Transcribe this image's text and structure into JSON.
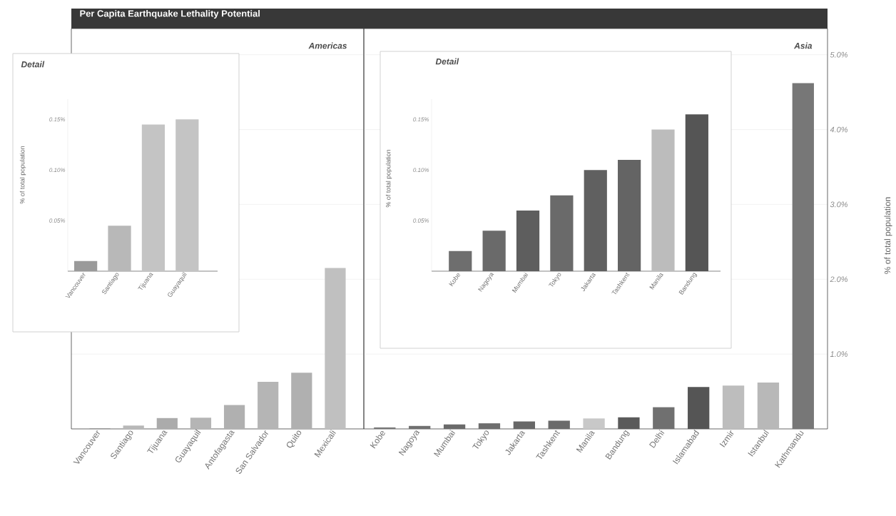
{
  "chart_data": [
    {
      "type": "bar",
      "title": "Per Capita Earthquake Lethality Potential",
      "subtitle": "Americas",
      "categories": [
        "Vancouver",
        "Santiago",
        "Tijuana",
        "Guayaquil",
        "Antofagasta",
        "San Salvador",
        "Quito",
        "Mexicali"
      ],
      "values": [
        0.01,
        0.045,
        0.145,
        0.15,
        0.32,
        0.63,
        0.75,
        2.15
      ],
      "colors": [
        "#9a9a9a",
        "#b8b8b8",
        "#ababab",
        "#b5b5b5",
        "#b0b0b0",
        "#b5b5b5",
        "#b0b0b0",
        "#c0c0c0"
      ],
      "ylim": [
        0,
        5.35
      ],
      "yticks": [
        1,
        2,
        3,
        4,
        5
      ],
      "grid": "y",
      "tick_labels": "x"
    },
    {
      "type": "bar",
      "subtitle": "Asia",
      "ylabel": "% of total population",
      "categories": [
        "Kobe",
        "Nagoya",
        "Mumbai",
        "Tokyo",
        "Jakarta",
        "Tashkent",
        "Manila",
        "Bandung",
        "Delhi",
        "Islamabad",
        "Izmir",
        "Istanbul",
        "Kathmandu"
      ],
      "values": [
        0.02,
        0.04,
        0.06,
        0.075,
        0.1,
        0.11,
        0.14,
        0.155,
        0.29,
        0.56,
        0.58,
        0.62,
        4.62
      ],
      "colors": [
        "#777777",
        "#707070",
        "#6a6a6a",
        "#6e6e6e",
        "#686868",
        "#6a6a6a",
        "#c8c8c8",
        "#5a5a5a",
        "#707070",
        "#555555",
        "#bdbdbd",
        "#b8b8b8",
        "#777777"
      ],
      "ylim": [
        0,
        5.35
      ],
      "yticks": [
        {
          "value": 1,
          "label": "1.0%"
        },
        {
          "value": 2,
          "label": "2.0%"
        },
        {
          "value": 3,
          "label": "3.0%"
        },
        {
          "value": 4,
          "label": "4.0%"
        },
        {
          "value": 5,
          "label": "5.0%"
        }
      ],
      "grid": "y"
    },
    {
      "type": "bar",
      "title": "Detail",
      "ylabel": "% of total population",
      "categories": [
        "Vancouver",
        "Santiago",
        "Tijuana",
        "Guayaquil"
      ],
      "values": [
        0.01,
        0.045,
        0.145,
        0.15
      ],
      "colors": [
        "#9a9a9a",
        "#b8b8b8",
        "#c4c4c4",
        "#c4c4c4"
      ],
      "ylim": [
        0,
        0.17
      ],
      "yticks": [
        {
          "value": 0.05,
          "label": "0.05%"
        },
        {
          "value": 0.1,
          "label": "0.10%"
        },
        {
          "value": 0.15,
          "label": "0.15%"
        }
      ]
    },
    {
      "type": "bar",
      "title": "Detail",
      "ylabel": "% of total population",
      "categories": [
        "Kobe",
        "Nagoya",
        "Mumbai",
        "Tokyo",
        "Jakarta",
        "Tashkent",
        "Manila",
        "Bandung"
      ],
      "values": [
        0.02,
        0.04,
        0.06,
        0.075,
        0.1,
        0.11,
        0.14,
        0.155
      ],
      "colors": [
        "#6e6e6e",
        "#6a6a6a",
        "#5e5e5e",
        "#6a6a6a",
        "#606060",
        "#646464",
        "#bcbcbc",
        "#555555"
      ],
      "ylim": [
        0,
        0.17
      ],
      "yticks": [
        {
          "value": 0.05,
          "label": "0.05%"
        },
        {
          "value": 0.1,
          "label": "0.10%"
        },
        {
          "value": 0.15,
          "label": "0.15%"
        }
      ]
    }
  ]
}
